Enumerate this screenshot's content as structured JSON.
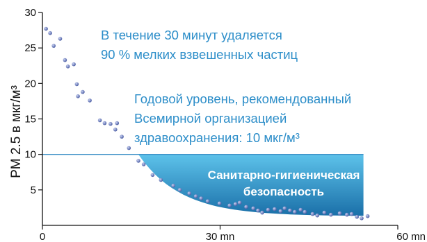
{
  "colors": {
    "annotation": "#2d8ec9",
    "threshold_line": "#3b8fc6",
    "band_top": "#5dc2ea",
    "band_bottom": "#1a6fa8",
    "points": "#3c4f9a",
    "axis": "#111111"
  },
  "chart_data": {
    "type": "scatter",
    "ylabel": "PM 2.5 в мкг/м³",
    "xlabel": "",
    "xlim": [
      0,
      60
    ],
    "ylim": [
      0,
      30
    ],
    "x_ticks": [
      {
        "value": 0,
        "label": "0"
      },
      {
        "value": 30,
        "label": "30 mn"
      },
      {
        "value": 60,
        "label": "60 mn"
      }
    ],
    "y_ticks": [
      {
        "value": 5,
        "label": "5"
      },
      {
        "value": 10,
        "label": "10"
      },
      {
        "value": 15,
        "label": "15"
      },
      {
        "value": 20,
        "label": "20"
      },
      {
        "value": 25,
        "label": "25"
      },
      {
        "value": 30,
        "label": "30"
      }
    ],
    "threshold": {
      "value": 10
    },
    "annotations": {
      "removal": [
        "В течение 30 минут удаляется",
        "90 % мелких взвешенных частиц"
      ],
      "who_level": [
        "Годовой уровень, рекомендованный",
        "Всемирной организацией",
        "здравоохранения: 10 мкг/м³"
      ],
      "safety_band": [
        "Санитарно-гигиеническая",
        "безопасность"
      ]
    },
    "points": [
      {
        "x": 0.6,
        "y": 27.7
      },
      {
        "x": 1.3,
        "y": 27.1
      },
      {
        "x": 1.9,
        "y": 25.3
      },
      {
        "x": 3.0,
        "y": 26.3
      },
      {
        "x": 3.8,
        "y": 23.3
      },
      {
        "x": 4.3,
        "y": 22.4
      },
      {
        "x": 5.3,
        "y": 22.7
      },
      {
        "x": 5.8,
        "y": 19.9
      },
      {
        "x": 6.0,
        "y": 18.2
      },
      {
        "x": 6.8,
        "y": 18.8
      },
      {
        "x": 8.0,
        "y": 17.6
      },
      {
        "x": 9.7,
        "y": 14.8
      },
      {
        "x": 10.5,
        "y": 14.4
      },
      {
        "x": 11.5,
        "y": 14.3
      },
      {
        "x": 12.3,
        "y": 13.5
      },
      {
        "x": 12.6,
        "y": 14.4
      },
      {
        "x": 13.4,
        "y": 12.5
      },
      {
        "x": 14.6,
        "y": 10.9
      },
      {
        "x": 16.2,
        "y": 9.1
      },
      {
        "x": 17.1,
        "y": 8.6
      },
      {
        "x": 18.6,
        "y": 7.1
      },
      {
        "x": 20.0,
        "y": 6.4
      },
      {
        "x": 22.1,
        "y": 5.6
      },
      {
        "x": 23.2,
        "y": 5.0
      },
      {
        "x": 24.8,
        "y": 4.5
      },
      {
        "x": 25.9,
        "y": 4.1
      },
      {
        "x": 26.8,
        "y": 3.8
      },
      {
        "x": 27.9,
        "y": 3.4
      },
      {
        "x": 29.9,
        "y": 3.1
      },
      {
        "x": 31.6,
        "y": 2.8
      },
      {
        "x": 32.6,
        "y": 3.0
      },
      {
        "x": 33.3,
        "y": 3.2
      },
      {
        "x": 34.4,
        "y": 2.6
      },
      {
        "x": 35.6,
        "y": 2.4
      },
      {
        "x": 36.4,
        "y": 2.1
      },
      {
        "x": 37.1,
        "y": 1.8
      },
      {
        "x": 38.1,
        "y": 2.2
      },
      {
        "x": 39.2,
        "y": 2.3
      },
      {
        "x": 40.2,
        "y": 2.0
      },
      {
        "x": 40.9,
        "y": 2.4
      },
      {
        "x": 41.8,
        "y": 2.1
      },
      {
        "x": 42.6,
        "y": 1.9
      },
      {
        "x": 43.6,
        "y": 2.2
      },
      {
        "x": 44.3,
        "y": 1.9
      },
      {
        "x": 45.6,
        "y": 1.6
      },
      {
        "x": 46.4,
        "y": 1.4
      },
      {
        "x": 47.6,
        "y": 1.8
      },
      {
        "x": 48.7,
        "y": 1.5
      },
      {
        "x": 50.2,
        "y": 1.7
      },
      {
        "x": 51.4,
        "y": 1.5
      },
      {
        "x": 52.2,
        "y": 1.6
      },
      {
        "x": 53.1,
        "y": 1.2
      },
      {
        "x": 53.9,
        "y": 1.0
      },
      {
        "x": 54.9,
        "y": 1.3
      }
    ]
  }
}
